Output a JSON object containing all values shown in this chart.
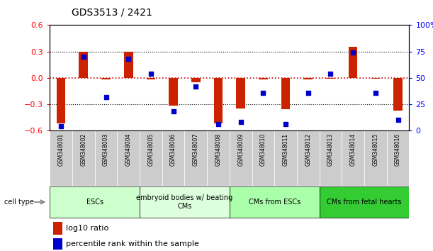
{
  "title": "GDS3513 / 2421",
  "samples": [
    "GSM348001",
    "GSM348002",
    "GSM348003",
    "GSM348004",
    "GSM348005",
    "GSM348006",
    "GSM348007",
    "GSM348008",
    "GSM348009",
    "GSM348010",
    "GSM348011",
    "GSM348012",
    "GSM348013",
    "GSM348014",
    "GSM348015",
    "GSM348016"
  ],
  "log10_ratio": [
    -0.52,
    0.3,
    -0.02,
    0.3,
    -0.02,
    -0.32,
    -0.05,
    -0.52,
    -0.35,
    -0.02,
    -0.36,
    -0.02,
    -0.01,
    0.35,
    -0.01,
    -0.37
  ],
  "percentile_rank": [
    4,
    70,
    32,
    68,
    54,
    18,
    42,
    6,
    8,
    36,
    6,
    36,
    54,
    74,
    36,
    10
  ],
  "ylim_left": [
    -0.6,
    0.6
  ],
  "ylim_right": [
    0,
    100
  ],
  "yticks_left": [
    -0.6,
    -0.3,
    0.0,
    0.3,
    0.6
  ],
  "yticks_right": [
    0,
    25,
    50,
    75,
    100
  ],
  "bar_color": "#cc2200",
  "dot_color": "#0000cc",
  "dotted_red_color": "#cc0000",
  "cell_type_groups": [
    {
      "label": "ESCs",
      "start": 0,
      "end": 3,
      "color": "#ccffcc"
    },
    {
      "label": "embryoid bodies w/ beating\nCMs",
      "start": 4,
      "end": 7,
      "color": "#ddffdd"
    },
    {
      "label": "CMs from ESCs",
      "start": 8,
      "end": 11,
      "color": "#aaffaa"
    },
    {
      "label": "CMs from fetal hearts",
      "start": 12,
      "end": 15,
      "color": "#33cc33"
    }
  ],
  "legend_bar_label": "log10 ratio",
  "legend_dot_label": "percentile rank within the sample",
  "background_color": "#ffffff",
  "sample_box_color": "#cccccc",
  "cell_type_label": "cell type",
  "bar_width": 0.4
}
